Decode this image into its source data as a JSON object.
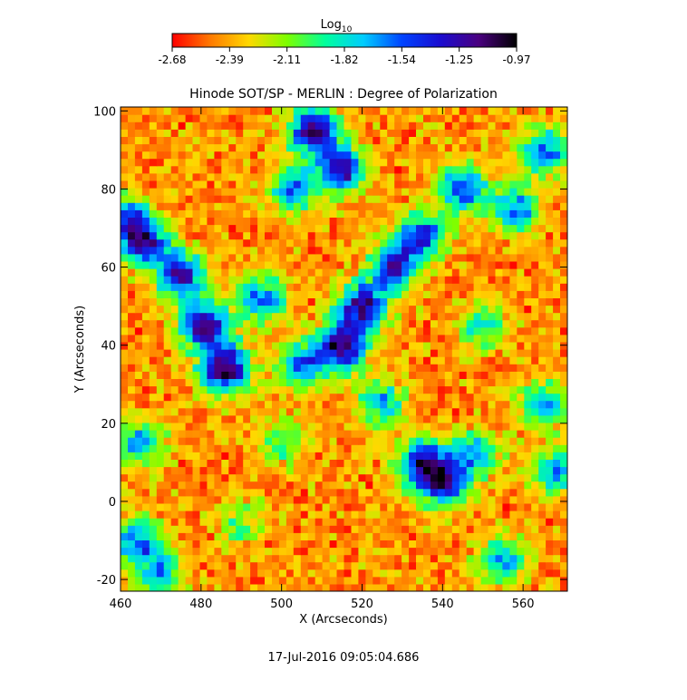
{
  "chart_data": {
    "type": "heatmap",
    "title": "Hinode SOT/SP - MERLIN : Degree of Polarization",
    "xlabel": "X (Arcseconds)",
    "ylabel": "Y (Arcseconds)",
    "xlim": [
      460,
      571
    ],
    "ylim": [
      -23,
      101
    ],
    "x_ticks": [
      460,
      480,
      500,
      520,
      540,
      560
    ],
    "y_ticks": [
      -20,
      0,
      20,
      40,
      60,
      80,
      100
    ],
    "colorbar": {
      "label_base": "Log",
      "label_subscript": "10",
      "range": [
        -2.68,
        -0.97
      ],
      "ticks": [
        "-2.68",
        "-2.39",
        "-2.11",
        "-1.82",
        "-1.54",
        "-1.25",
        "-0.97"
      ],
      "colors": [
        "#ff0000",
        "#ff7a00",
        "#ffd800",
        "#7cff00",
        "#00ff9c",
        "#00ccff",
        "#0044ff",
        "#1a0cd0",
        "#4a0080",
        "#000000"
      ]
    },
    "features": [
      {
        "x": 486,
        "y": 34,
        "strength": 1.0
      },
      {
        "x": 481,
        "y": 45,
        "strength": 0.9
      },
      {
        "x": 475,
        "y": 58,
        "strength": 0.8
      },
      {
        "x": 466,
        "y": 66,
        "strength": 0.7
      },
      {
        "x": 462,
        "y": 72,
        "strength": 0.6
      },
      {
        "x": 495,
        "y": 52,
        "strength": 0.6
      },
      {
        "x": 515,
        "y": 40,
        "strength": 0.95
      },
      {
        "x": 520,
        "y": 50,
        "strength": 0.85
      },
      {
        "x": 528,
        "y": 60,
        "strength": 0.75
      },
      {
        "x": 535,
        "y": 68,
        "strength": 0.7
      },
      {
        "x": 508,
        "y": 95,
        "strength": 0.9
      },
      {
        "x": 515,
        "y": 85,
        "strength": 0.8
      },
      {
        "x": 503,
        "y": 80,
        "strength": 0.6
      },
      {
        "x": 545,
        "y": 80,
        "strength": 0.7
      },
      {
        "x": 558,
        "y": 75,
        "strength": 0.6
      },
      {
        "x": 565,
        "y": 90,
        "strength": 0.6
      },
      {
        "x": 540,
        "y": 5,
        "strength": 0.8
      },
      {
        "x": 535,
        "y": 10,
        "strength": 0.7
      },
      {
        "x": 548,
        "y": 12,
        "strength": 0.5
      },
      {
        "x": 525,
        "y": 25,
        "strength": 0.5
      },
      {
        "x": 505,
        "y": 35,
        "strength": 0.6
      },
      {
        "x": 465,
        "y": 15,
        "strength": 0.5
      },
      {
        "x": 464,
        "y": -10,
        "strength": 0.6
      },
      {
        "x": 470,
        "y": -18,
        "strength": 0.5
      },
      {
        "x": 555,
        "y": -15,
        "strength": 0.5
      },
      {
        "x": 568,
        "y": 8,
        "strength": 0.5
      },
      {
        "x": 565,
        "y": 25,
        "strength": 0.5
      },
      {
        "x": 550,
        "y": 45,
        "strength": 0.4
      },
      {
        "x": 490,
        "y": -5,
        "strength": 0.3
      },
      {
        "x": 500,
        "y": 15,
        "strength": 0.3
      }
    ],
    "timestamp": "17-Jul-2016 09:05:04.686"
  }
}
